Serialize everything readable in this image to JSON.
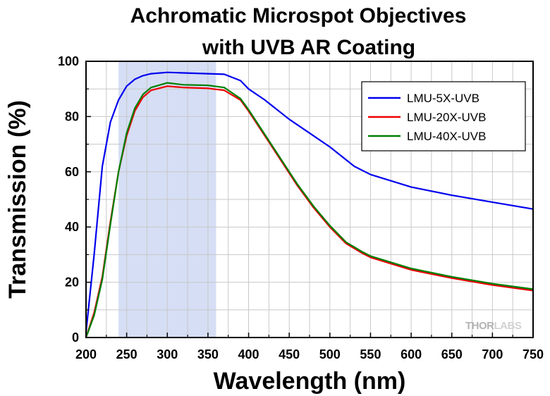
{
  "chart_data": {
    "type": "line",
    "title": [
      "Achromatic Microspot Objectives",
      "with UVB AR Coating"
    ],
    "xlabel": "Wavelength (nm)",
    "ylabel": "Transmission (%)",
    "xlim": [
      200,
      750
    ],
    "ylim": [
      0,
      100
    ],
    "xticks": [
      200,
      250,
      300,
      350,
      400,
      450,
      500,
      550,
      600,
      650,
      700,
      750
    ],
    "yticks": [
      0,
      20,
      40,
      60,
      80,
      100
    ],
    "grid": true,
    "legend_position": "top-right",
    "highlight_band": [
      240,
      360
    ],
    "series": [
      {
        "name": "LMU-5X-UVB",
        "color": "#0000ee",
        "x": [
          200,
          210,
          220,
          230,
          240,
          250,
          260,
          270,
          280,
          300,
          320,
          350,
          370,
          390,
          400,
          420,
          450,
          480,
          500,
          530,
          550,
          600,
          650,
          700,
          750
        ],
        "y": [
          2,
          30,
          62,
          78,
          86,
          91,
          93.5,
          94.8,
          95.5,
          96,
          95.8,
          95.5,
          95.3,
          93,
          90,
          86,
          79,
          73,
          69,
          62,
          59,
          54.5,
          51.5,
          49,
          46.5
        ]
      },
      {
        "name": "LMU-20X-UVB",
        "color": "#ee0000",
        "x": [
          200,
          210,
          220,
          230,
          240,
          250,
          260,
          270,
          280,
          300,
          320,
          350,
          370,
          390,
          400,
          420,
          440,
          460,
          480,
          500,
          520,
          540,
          550,
          600,
          650,
          700,
          750
        ],
        "y": [
          0,
          9,
          22,
          42,
          60,
          73,
          82,
          87,
          89.5,
          91,
          90.5,
          90.2,
          89.5,
          86,
          82,
          73,
          64,
          55,
          47,
          40,
          34,
          30.5,
          29,
          24.5,
          21.5,
          19,
          17
        ]
      },
      {
        "name": "LMU-40X-UVB",
        "color": "#008000",
        "x": [
          200,
          210,
          220,
          230,
          240,
          250,
          260,
          270,
          280,
          300,
          320,
          350,
          370,
          390,
          400,
          420,
          440,
          460,
          480,
          500,
          520,
          540,
          550,
          600,
          650,
          700,
          750
        ],
        "y": [
          0,
          8,
          21,
          41,
          60,
          74,
          83,
          88,
          90.5,
          92.2,
          91.5,
          91.3,
          90.5,
          86.5,
          82.5,
          73.5,
          64.5,
          55.5,
          47.5,
          40.5,
          34.5,
          31,
          29.5,
          25,
          22,
          19.5,
          17.5
        ]
      }
    ]
  },
  "watermark": {
    "text_a": "THOR",
    "text_b": "LABS"
  }
}
